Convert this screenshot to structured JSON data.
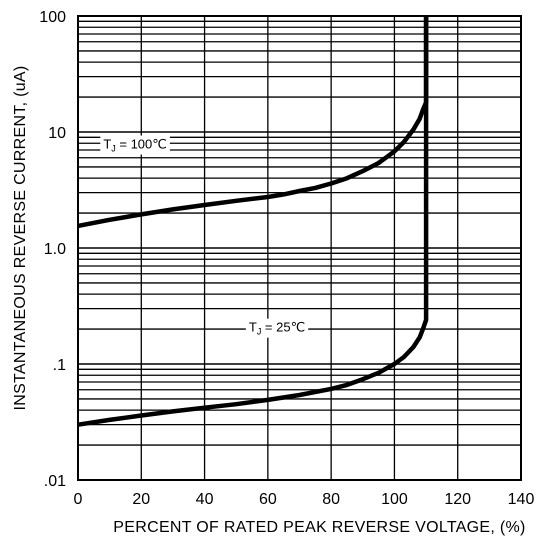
{
  "chart_data": {
    "type": "line",
    "title": "",
    "xlabel": "PERCENT OF RATED PEAK REVERSE VOLTAGE, (%)",
    "ylabel": "INSTANTANEOUS REVERSE CURRENT, (uA)",
    "xlim": [
      0,
      140
    ],
    "ylim": [
      0.01,
      100
    ],
    "yscale": "log",
    "grid": true,
    "x_ticks": [
      0,
      20,
      40,
      60,
      80,
      100,
      120,
      140
    ],
    "x_tick_labels": [
      "0",
      "20",
      "40",
      "60",
      "80",
      "100",
      "120",
      "140"
    ],
    "y_ticks": [
      0.01,
      0.1,
      1,
      10,
      100
    ],
    "y_tick_labels": [
      ".01",
      ".1",
      "1.0",
      "10",
      "100"
    ],
    "series": [
      {
        "label_main": "T",
        "label_sub": "J",
        "label_rest": " = 100℃",
        "label_at": [
          8,
          7.2
        ],
        "x": [
          0,
          10,
          20,
          30,
          40,
          50,
          60,
          65,
          70,
          75,
          80,
          85,
          90,
          95,
          100,
          103,
          106,
          108,
          109,
          110,
          110
        ],
        "y": [
          1.55,
          1.75,
          1.95,
          2.15,
          2.35,
          2.55,
          2.75,
          2.9,
          3.1,
          3.3,
          3.6,
          4.0,
          4.6,
          5.4,
          6.8,
          8.2,
          10.5,
          13,
          15.5,
          18,
          100
        ]
      },
      {
        "label_main": "T",
        "label_sub": "J",
        "label_rest": " = 25℃",
        "label_at": [
          54,
          0.19
        ],
        "x": [
          0,
          10,
          20,
          30,
          40,
          50,
          60,
          70,
          80,
          85,
          90,
          95,
          100,
          103,
          106,
          108,
          109,
          110,
          110
        ],
        "y": [
          0.03,
          0.033,
          0.036,
          0.039,
          0.042,
          0.045,
          0.049,
          0.054,
          0.061,
          0.066,
          0.074,
          0.084,
          0.1,
          0.115,
          0.14,
          0.17,
          0.2,
          0.24,
          100
        ]
      }
    ]
  }
}
